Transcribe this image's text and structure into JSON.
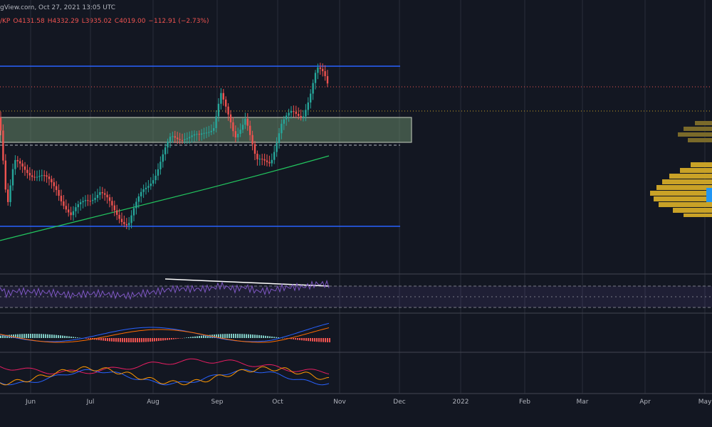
{
  "header": {
    "source": "gView.com, Oct 27, 2021 13:05 UTC",
    "symbol": "/KP",
    "open": "O4131.58",
    "high": "H4332.29",
    "low": "L3935.02",
    "close": "C4019.00",
    "change": "−112.91 (−2.73%)"
  },
  "time_axis": [
    "Jun",
    "Jul",
    "Aug",
    "Sep",
    "Oct",
    "Nov",
    "Dec",
    "2022",
    "Feb",
    "Mar",
    "Apr",
    "May"
  ]
}
